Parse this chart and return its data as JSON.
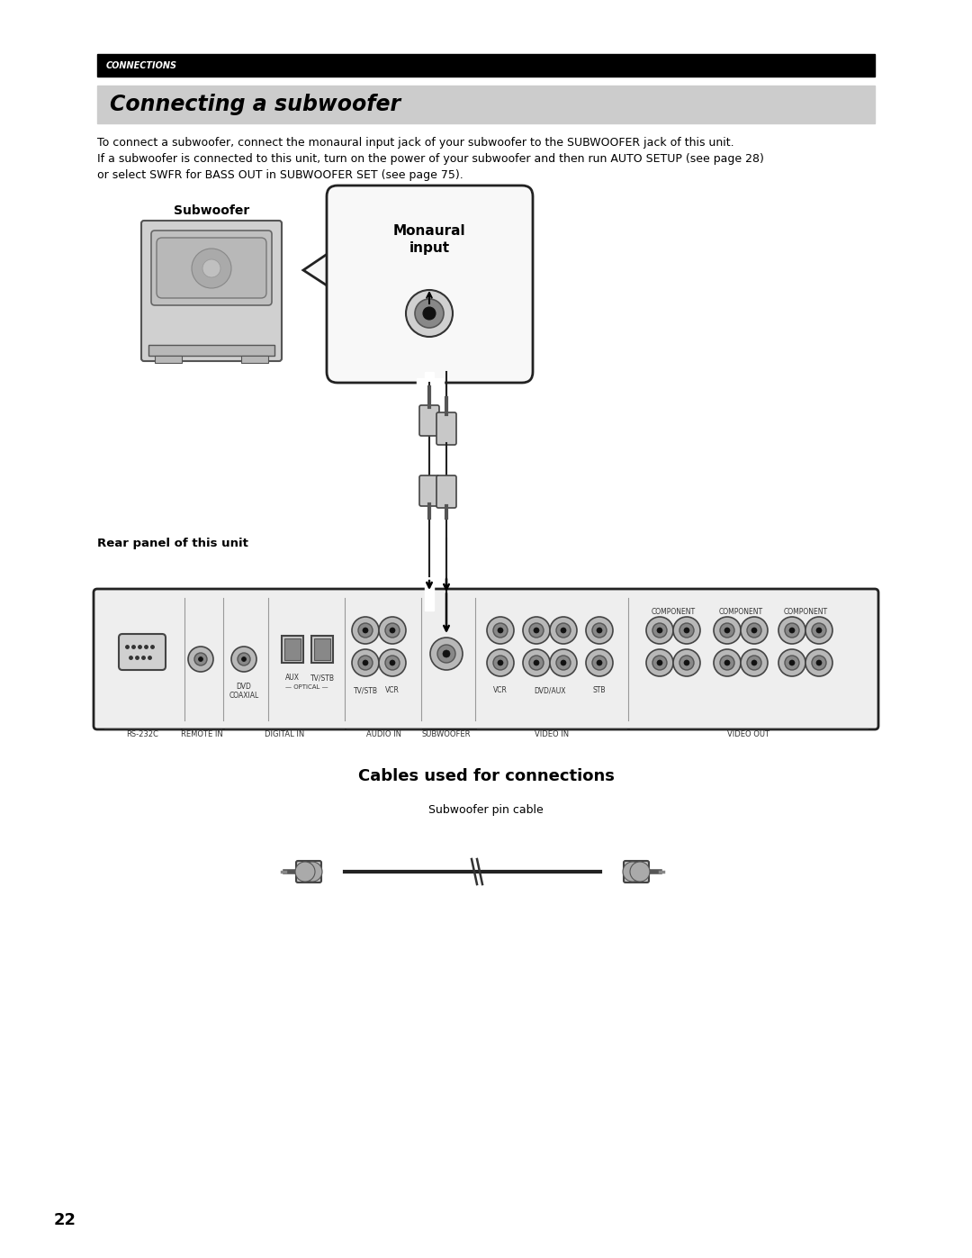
{
  "page_bg": "#ffffff",
  "page_number": "22",
  "header_bar_color": "#000000",
  "header_text": "CONNECTIONS",
  "header_text_color": "#ffffff",
  "section_bg": "#cccccc",
  "section_title": "Connecting a subwoofer",
  "body_text_line1": "To connect a subwoofer, connect the monaural input jack of your subwoofer to the SUBWOOFER jack of this unit.",
  "body_text_line2": "If a subwoofer is connected to this unit, turn on the power of your subwoofer and then run AUTO SETUP (see page 28)",
  "body_text_line3": "or select SWFR for BASS OUT in SUBWOOFER SET (see page 75).",
  "subwoofer_label": "Subwoofer",
  "monaural_label": "Monaural\ninput",
  "rear_panel_label": "Rear panel of this unit",
  "cables_title": "Cables used for connections",
  "cable_label": "Subwoofer pin cable",
  "rs232c_label": "RS-232C",
  "remote_in_label": "REMOTE IN",
  "digital_in_label": "DIGITAL IN",
  "dvd_coaxial_label": "DVD\nCOAXIAL",
  "aux_label": "AUX",
  "tvstb_label": "TV/STB",
  "optical_label": "— OPTICAL —",
  "audio_in_label": "AUDIO IN",
  "tvstb2_label": "TV/STB",
  "vcr_label": "VCR",
  "subwoofer_jack_label": "SUBWOOFER",
  "vcr2_label": "VCR",
  "dvdaux_label": "DVD/AUX",
  "stb_label": "STB",
  "video_in_label": "VIDEO IN",
  "component_label": "COMPONENT",
  "video_out_label": "VIDEO OUT"
}
